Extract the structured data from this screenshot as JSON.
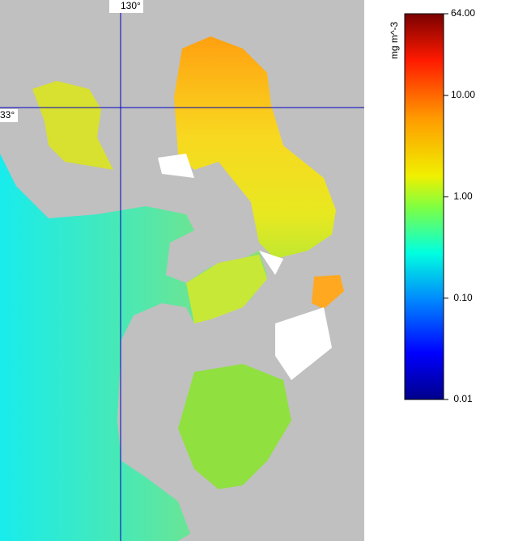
{
  "map": {
    "lon_label": "130°",
    "lat_label": "33°"
  },
  "colorbar": {
    "label": "mg m^-3",
    "scale": "log",
    "lim": [
      0.01,
      64
    ],
    "ticks": [
      {
        "value": 64,
        "label": "64.00"
      },
      {
        "value": 10,
        "label": "10.00"
      },
      {
        "value": 1,
        "label": "1.00"
      },
      {
        "value": 0.1,
        "label": "0.10"
      },
      {
        "value": 0.01,
        "label": "0.01"
      }
    ]
  }
}
